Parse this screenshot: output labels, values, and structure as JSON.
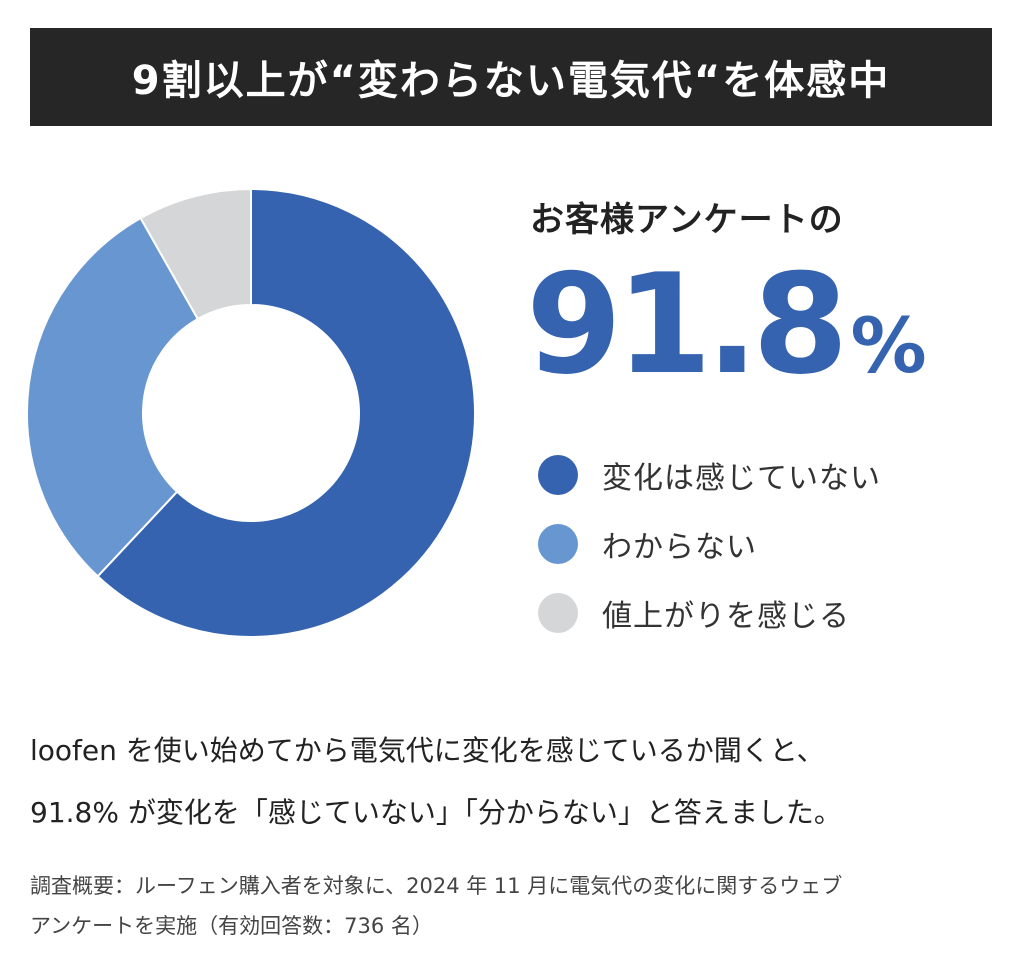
{
  "banner": {
    "title": "9割以上が“変わらない電気代“を体感中"
  },
  "survey": {
    "label": "お客様アンケートの",
    "big_number": "91.8",
    "big_unit": "%"
  },
  "chart_data": {
    "type": "pie",
    "donut": true,
    "categories": [
      "変化は感じていない",
      "わからない",
      "値上がりを感じる"
    ],
    "values": [
      62.0,
      29.8,
      8.2
    ],
    "colors": [
      "#3563b0",
      "#6796d1",
      "#d5d6d7"
    ],
    "legend_position": "right"
  },
  "body": {
    "line1": "loofen を使い始めてから電気代に変化を感じているか聞くと、",
    "line2": "91.8% が変化を「感じていない」「分からない」と答えました。"
  },
  "note": {
    "line1": "調査概要：ルーフェン購入者を対象に、2024 年 11 月に電気代の変化に関するウェブ",
    "line2": "アンケートを実施（有効回答数：736 名）"
  }
}
